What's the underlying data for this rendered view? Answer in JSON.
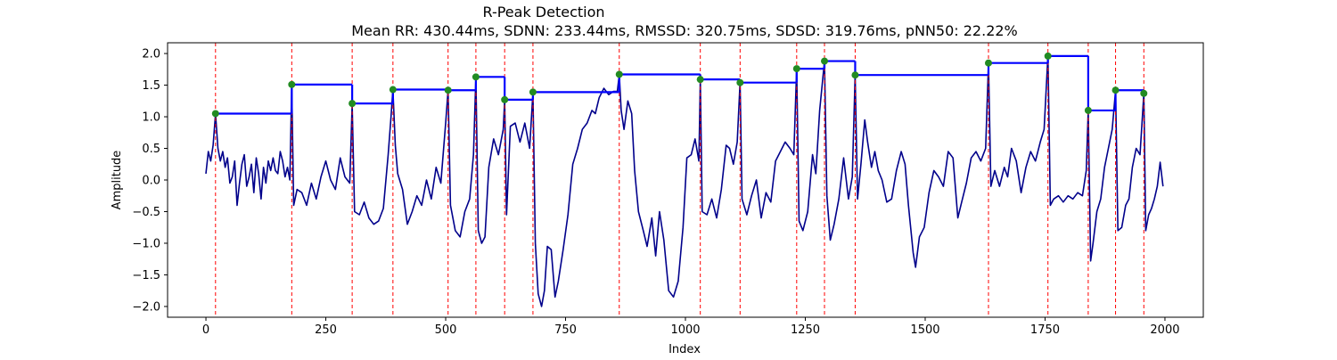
{
  "chart_data": {
    "type": "line",
    "title": "R-Peak Detection",
    "subtitle": "Mean RR: 430.44ms, SDNN: 233.44ms, RMSSD: 320.75ms, SDSD: 319.76ms, pNN50: 22.22%",
    "xlabel": "Index",
    "ylabel": "Amplitude",
    "xlim": [
      -80,
      2080
    ],
    "ylim": [
      -2.17,
      2.17
    ],
    "xticks": [
      0,
      250,
      500,
      750,
      1000,
      1250,
      1500,
      1750,
      2000
    ],
    "yticks": [
      -2.0,
      -1.5,
      -1.0,
      -0.5,
      0.0,
      0.5,
      1.0,
      1.5,
      2.0
    ],
    "grid": false,
    "colors": {
      "signal": "#00008b",
      "peak_lines": "#ff0000",
      "rr_segments": "#0000ff",
      "peak_markers": "#228b22"
    },
    "signal": [
      [
        0,
        0.1
      ],
      [
        5,
        0.45
      ],
      [
        10,
        0.3
      ],
      [
        15,
        0.55
      ],
      [
        20,
        1.05
      ],
      [
        25,
        0.5
      ],
      [
        30,
        0.3
      ],
      [
        35,
        0.45
      ],
      [
        40,
        0.2
      ],
      [
        45,
        0.35
      ],
      [
        50,
        -0.05
      ],
      [
        55,
        0.05
      ],
      [
        60,
        0.3
      ],
      [
        65,
        -0.4
      ],
      [
        70,
        -0.05
      ],
      [
        75,
        0.25
      ],
      [
        80,
        0.4
      ],
      [
        85,
        -0.1
      ],
      [
        90,
        0.05
      ],
      [
        95,
        0.25
      ],
      [
        100,
        -0.2
      ],
      [
        105,
        0.35
      ],
      [
        110,
        0.1
      ],
      [
        115,
        -0.3
      ],
      [
        120,
        0.2
      ],
      [
        125,
        -0.05
      ],
      [
        130,
        0.3
      ],
      [
        135,
        0.15
      ],
      [
        140,
        0.35
      ],
      [
        145,
        0.15
      ],
      [
        150,
        0.1
      ],
      [
        155,
        0.45
      ],
      [
        160,
        0.3
      ],
      [
        165,
        0.05
      ],
      [
        170,
        0.2
      ],
      [
        175,
        0.0
      ],
      [
        179,
        1.5
      ],
      [
        183,
        -0.4
      ],
      [
        190,
        -0.15
      ],
      [
        200,
        -0.2
      ],
      [
        210,
        -0.4
      ],
      [
        220,
        -0.05
      ],
      [
        230,
        -0.3
      ],
      [
        240,
        0.05
      ],
      [
        250,
        0.3
      ],
      [
        260,
        0.0
      ],
      [
        270,
        -0.15
      ],
      [
        280,
        0.35
      ],
      [
        290,
        0.05
      ],
      [
        300,
        -0.05
      ],
      [
        305,
        1.2
      ],
      [
        310,
        -0.5
      ],
      [
        320,
        -0.55
      ],
      [
        330,
        -0.35
      ],
      [
        340,
        -0.6
      ],
      [
        350,
        -0.7
      ],
      [
        360,
        -0.65
      ],
      [
        370,
        -0.45
      ],
      [
        380,
        0.4
      ],
      [
        386,
        1.0
      ],
      [
        390,
        1.43
      ],
      [
        395,
        0.55
      ],
      [
        400,
        0.1
      ],
      [
        410,
        -0.15
      ],
      [
        420,
        -0.7
      ],
      [
        430,
        -0.5
      ],
      [
        440,
        -0.25
      ],
      [
        450,
        -0.4
      ],
      [
        460,
        0.0
      ],
      [
        470,
        -0.3
      ],
      [
        480,
        0.2
      ],
      [
        490,
        -0.05
      ],
      [
        500,
        0.9
      ],
      [
        505,
        1.42
      ],
      [
        510,
        -0.4
      ],
      [
        520,
        -0.8
      ],
      [
        530,
        -0.9
      ],
      [
        540,
        -0.5
      ],
      [
        550,
        -0.3
      ],
      [
        558,
        0.4
      ],
      [
        563,
        1.63
      ],
      [
        568,
        -0.8
      ],
      [
        575,
        -1.0
      ],
      [
        582,
        -0.9
      ],
      [
        590,
        0.2
      ],
      [
        600,
        0.65
      ],
      [
        610,
        0.4
      ],
      [
        620,
        0.8
      ],
      [
        623,
        1.27
      ],
      [
        627,
        -0.55
      ],
      [
        635,
        0.85
      ],
      [
        645,
        0.9
      ],
      [
        655,
        0.6
      ],
      [
        665,
        0.9
      ],
      [
        675,
        0.5
      ],
      [
        682,
        1.38
      ],
      [
        687,
        -1.0
      ],
      [
        693,
        -1.8
      ],
      [
        700,
        -2.0
      ],
      [
        706,
        -1.75
      ],
      [
        712,
        -1.05
      ],
      [
        720,
        -1.1
      ],
      [
        728,
        -1.85
      ],
      [
        735,
        -1.6
      ],
      [
        745,
        -1.1
      ],
      [
        755,
        -0.55
      ],
      [
        765,
        0.25
      ],
      [
        775,
        0.5
      ],
      [
        785,
        0.8
      ],
      [
        795,
        0.9
      ],
      [
        805,
        1.1
      ],
      [
        812,
        1.05
      ],
      [
        820,
        1.3
      ],
      [
        830,
        1.45
      ],
      [
        840,
        1.35
      ],
      [
        850,
        1.4
      ],
      [
        858,
        1.4
      ],
      [
        862,
        1.67
      ],
      [
        866,
        1.1
      ],
      [
        872,
        0.8
      ],
      [
        880,
        1.25
      ],
      [
        888,
        1.05
      ],
      [
        894,
        0.15
      ],
      [
        902,
        -0.5
      ],
      [
        912,
        -0.8
      ],
      [
        920,
        -1.05
      ],
      [
        930,
        -0.6
      ],
      [
        938,
        -1.2
      ],
      [
        946,
        -0.5
      ],
      [
        955,
        -0.95
      ],
      [
        965,
        -1.75
      ],
      [
        975,
        -1.85
      ],
      [
        985,
        -1.6
      ],
      [
        995,
        -0.75
      ],
      [
        1003,
        0.35
      ],
      [
        1012,
        0.4
      ],
      [
        1020,
        0.65
      ],
      [
        1028,
        0.3
      ],
      [
        1031,
        1.6
      ],
      [
        1035,
        -0.5
      ],
      [
        1045,
        -0.55
      ],
      [
        1055,
        -0.3
      ],
      [
        1065,
        -0.6
      ],
      [
        1075,
        -0.15
      ],
      [
        1085,
        0.55
      ],
      [
        1092,
        0.5
      ],
      [
        1100,
        0.25
      ],
      [
        1108,
        0.6
      ],
      [
        1114,
        1.55
      ],
      [
        1118,
        -0.3
      ],
      [
        1128,
        -0.55
      ],
      [
        1138,
        -0.25
      ],
      [
        1148,
        0.0
      ],
      [
        1158,
        -0.6
      ],
      [
        1168,
        -0.2
      ],
      [
        1178,
        -0.35
      ],
      [
        1188,
        0.3
      ],
      [
        1198,
        0.45
      ],
      [
        1208,
        0.6
      ],
      [
        1218,
        0.5
      ],
      [
        1226,
        0.4
      ],
      [
        1232,
        1.77
      ],
      [
        1237,
        -0.65
      ],
      [
        1245,
        -0.8
      ],
      [
        1255,
        -0.5
      ],
      [
        1265,
        0.4
      ],
      [
        1272,
        0.1
      ],
      [
        1280,
        1.1
      ],
      [
        1290,
        1.88
      ],
      [
        1295,
        -0.25
      ],
      [
        1302,
        -0.95
      ],
      [
        1310,
        -0.7
      ],
      [
        1320,
        -0.3
      ],
      [
        1330,
        0.35
      ],
      [
        1340,
        -0.3
      ],
      [
        1348,
        0.05
      ],
      [
        1354,
        1.66
      ],
      [
        1359,
        -0.3
      ],
      [
        1366,
        0.25
      ],
      [
        1374,
        0.95
      ],
      [
        1380,
        0.6
      ],
      [
        1388,
        0.2
      ],
      [
        1395,
        0.45
      ],
      [
        1402,
        0.15
      ],
      [
        1410,
        0.0
      ],
      [
        1420,
        -0.35
      ],
      [
        1430,
        -0.3
      ],
      [
        1440,
        0.15
      ],
      [
        1450,
        0.45
      ],
      [
        1458,
        0.25
      ],
      [
        1465,
        -0.4
      ],
      [
        1475,
        -1.15
      ],
      [
        1480,
        -1.38
      ],
      [
        1488,
        -0.9
      ],
      [
        1498,
        -0.75
      ],
      [
        1508,
        -0.2
      ],
      [
        1518,
        0.15
      ],
      [
        1528,
        0.05
      ],
      [
        1538,
        -0.1
      ],
      [
        1548,
        0.45
      ],
      [
        1558,
        0.35
      ],
      [
        1568,
        -0.6
      ],
      [
        1576,
        -0.35
      ],
      [
        1586,
        -0.05
      ],
      [
        1596,
        0.35
      ],
      [
        1606,
        0.45
      ],
      [
        1616,
        0.3
      ],
      [
        1626,
        0.5
      ],
      [
        1632,
        1.85
      ],
      [
        1637,
        -0.1
      ],
      [
        1645,
        0.15
      ],
      [
        1655,
        -0.1
      ],
      [
        1665,
        0.2
      ],
      [
        1672,
        0.05
      ],
      [
        1680,
        0.5
      ],
      [
        1690,
        0.3
      ],
      [
        1700,
        -0.2
      ],
      [
        1710,
        0.2
      ],
      [
        1720,
        0.45
      ],
      [
        1730,
        0.3
      ],
      [
        1740,
        0.6
      ],
      [
        1748,
        0.8
      ],
      [
        1756,
        1.97
      ],
      [
        1761,
        -0.4
      ],
      [
        1768,
        -0.3
      ],
      [
        1778,
        -0.25
      ],
      [
        1788,
        -0.35
      ],
      [
        1798,
        -0.25
      ],
      [
        1808,
        -0.3
      ],
      [
        1818,
        -0.2
      ],
      [
        1828,
        -0.25
      ],
      [
        1836,
        0.15
      ],
      [
        1840,
        1.1
      ],
      [
        1845,
        -1.28
      ],
      [
        1850,
        -1.0
      ],
      [
        1858,
        -0.5
      ],
      [
        1866,
        -0.3
      ],
      [
        1874,
        0.2
      ],
      [
        1882,
        0.5
      ],
      [
        1890,
        0.8
      ],
      [
        1897,
        1.42
      ],
      [
        1902,
        -0.8
      ],
      [
        1910,
        -0.75
      ],
      [
        1918,
        -0.4
      ],
      [
        1925,
        -0.3
      ],
      [
        1932,
        0.2
      ],
      [
        1940,
        0.5
      ],
      [
        1948,
        0.4
      ],
      [
        1956,
        1.37
      ],
      [
        1960,
        -0.8
      ],
      [
        1966,
        -0.55
      ],
      [
        1972,
        -0.45
      ],
      [
        1978,
        -0.3
      ],
      [
        1984,
        -0.1
      ],
      [
        1990,
        0.28
      ],
      [
        1996,
        -0.1
      ]
    ],
    "peaks": [
      {
        "x": 20,
        "y": 1.05
      },
      {
        "x": 179,
        "y": 1.51
      },
      {
        "x": 305,
        "y": 1.21
      },
      {
        "x": 390,
        "y": 1.43
      },
      {
        "x": 505,
        "y": 1.42
      },
      {
        "x": 563,
        "y": 1.63
      },
      {
        "x": 623,
        "y": 1.27
      },
      {
        "x": 682,
        "y": 1.39
      },
      {
        "x": 862,
        "y": 1.67
      },
      {
        "x": 1031,
        "y": 1.59
      },
      {
        "x": 1114,
        "y": 1.54
      },
      {
        "x": 1232,
        "y": 1.76
      },
      {
        "x": 1290,
        "y": 1.88
      },
      {
        "x": 1354,
        "y": 1.66
      },
      {
        "x": 1632,
        "y": 1.85
      },
      {
        "x": 1756,
        "y": 1.96
      },
      {
        "x": 1840,
        "y": 1.1
      },
      {
        "x": 1897,
        "y": 1.42
      },
      {
        "x": 1956,
        "y": 1.37
      }
    ]
  }
}
